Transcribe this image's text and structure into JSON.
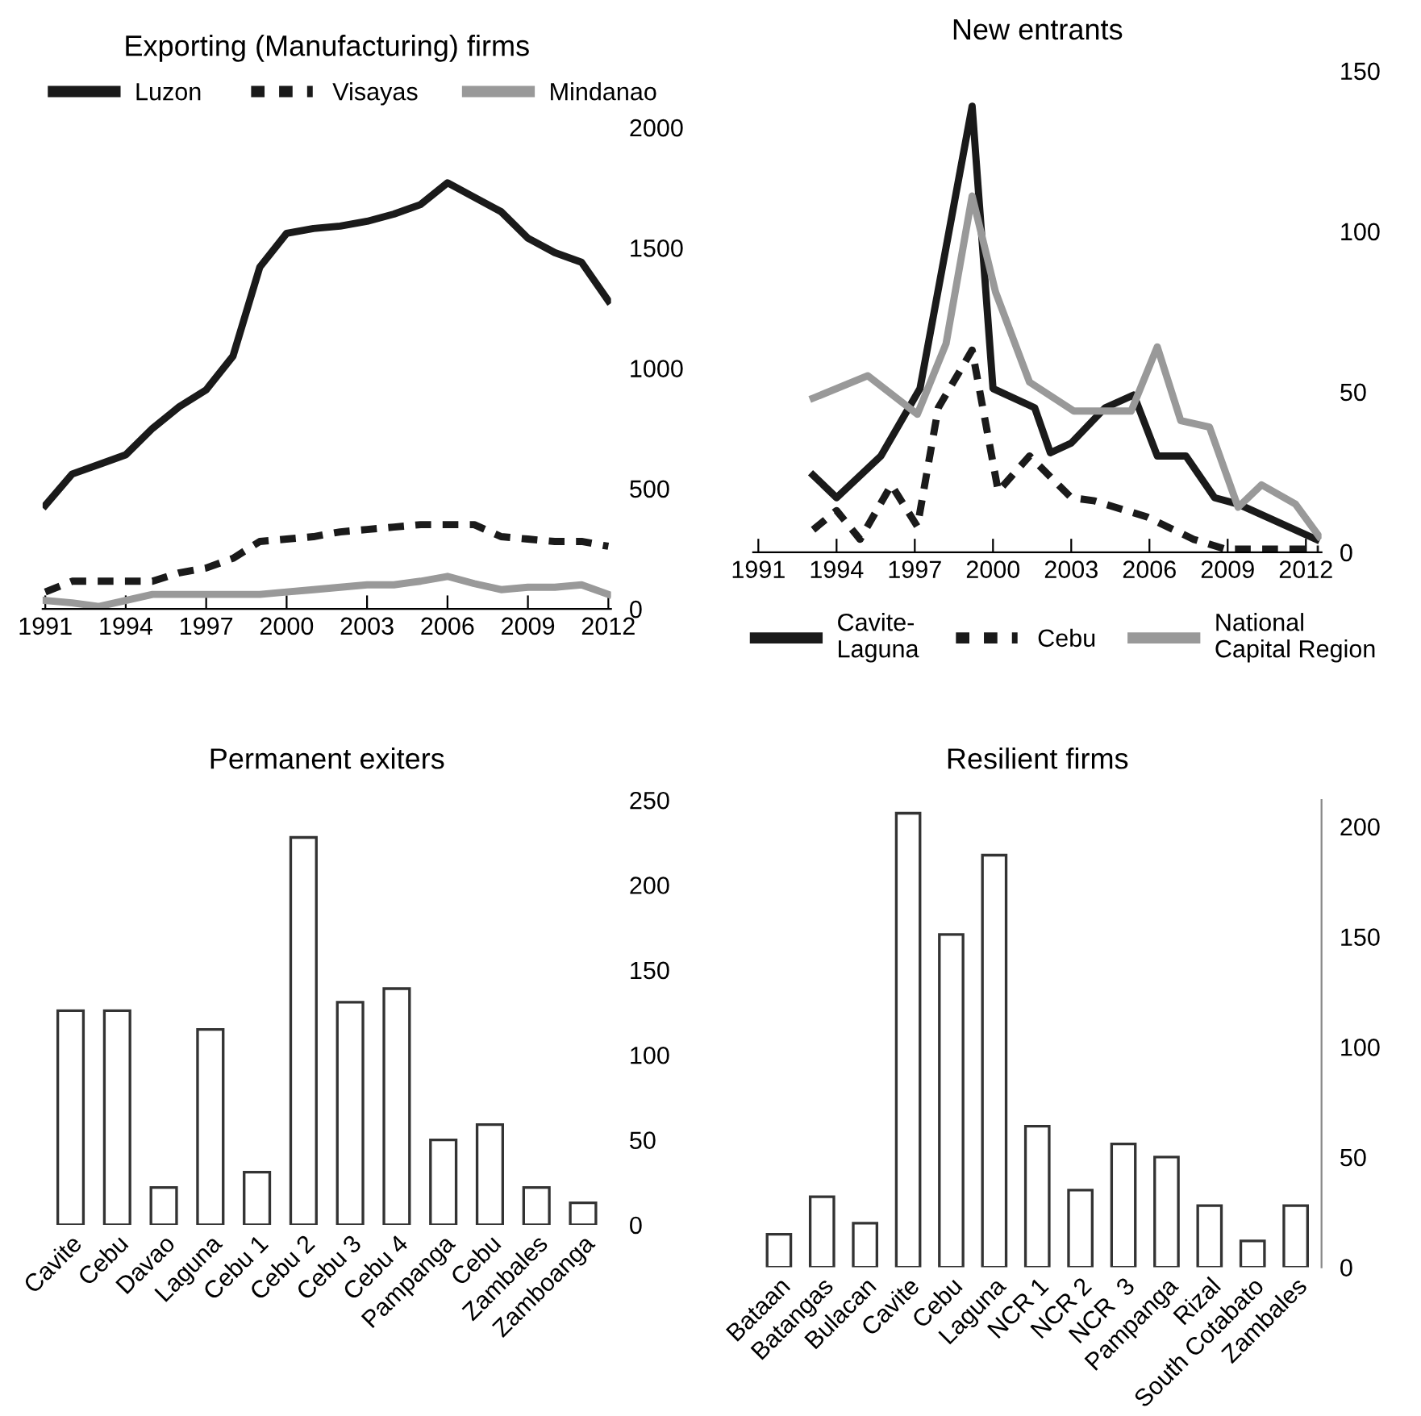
{
  "chart_data": [
    {
      "type": "line",
      "title": "Exporting (Manufacturing) firms",
      "legend": "top",
      "grid": false,
      "xlim": [
        1990.9,
        2012.1
      ],
      "xticks": [
        1991,
        1994,
        1997,
        2000,
        2003,
        2006,
        2009,
        2012
      ],
      "ylim": [
        0,
        2000
      ],
      "yticks": [
        0,
        500,
        1000,
        1500,
        2000
      ],
      "x": [
        1991,
        1992,
        1993,
        1994,
        1995,
        1996,
        1997,
        1998,
        1999,
        2000,
        2001,
        2002,
        2003,
        2004,
        2005,
        2006,
        2007,
        2008,
        2009,
        2010,
        2011,
        2012
      ],
      "series": [
        {
          "name": "Luzon",
          "color": "#1a1a1a",
          "line_style": "solid",
          "values": [
            430,
            560,
            600,
            640,
            750,
            840,
            910,
            1050,
            1420,
            1560,
            1580,
            1590,
            1610,
            1640,
            1680,
            1770,
            1710,
            1650,
            1540,
            1480,
            1440,
            1280
          ]
        },
        {
          "name": "Visayas",
          "color": "#1a1a1a",
          "line_style": "dashed",
          "values": [
            70,
            115,
            115,
            115,
            115,
            150,
            170,
            210,
            280,
            290,
            300,
            320,
            330,
            340,
            350,
            350,
            350,
            300,
            290,
            280,
            280,
            260
          ]
        },
        {
          "name": "Mindanao",
          "color": "#999999",
          "line_style": "solid",
          "values": [
            35,
            25,
            10,
            35,
            60,
            60,
            60,
            60,
            60,
            70,
            80,
            90,
            100,
            100,
            115,
            135,
            105,
            80,
            90,
            90,
            100,
            60
          ]
        }
      ]
    },
    {
      "type": "line",
      "title": "New entrants",
      "legend": "bottom",
      "grid": false,
      "xlim": [
        1990.8,
        2012.6
      ],
      "xticks": [
        1991,
        1994,
        1997,
        2000,
        2003,
        2006,
        2009,
        2012
      ],
      "ylim": [
        0,
        150
      ],
      "yticks": [
        0,
        50,
        100,
        150
      ],
      "series": [
        {
          "name": "Cavite-\nLaguna",
          "color": "#1a1a1a",
          "line_style": "solid",
          "x": [
            1993.1,
            1994,
            1995.7,
            1997.2,
            1999.2,
            2000,
            2001.6,
            2002.2,
            2003,
            2004.3,
            2005.4,
            2006.3,
            2007.4,
            2008.5,
            2009.4,
            2012.4
          ],
          "values": [
            24,
            17,
            30,
            51,
            139,
            51,
            45,
            31,
            34,
            45,
            49,
            30,
            30,
            17,
            15,
            4
          ]
        },
        {
          "name": "Cebu",
          "color": "#1a1a1a",
          "line_style": "dashed",
          "x": [
            1993.1,
            1994,
            1994.9,
            1996.1,
            1997.1,
            1997.9,
            1999.2,
            2000.2,
            2001.4,
            2003,
            2003.9,
            2005.9,
            2007.7,
            2008.9,
            2012.5
          ],
          "values": [
            7,
            13,
            4,
            21,
            8,
            45,
            63,
            19,
            30,
            17,
            16,
            11,
            4,
            1,
            1
          ]
        },
        {
          "name": "National\nCapital Region",
          "color": "#999999",
          "line_style": "solid",
          "x": [
            1993.1,
            1995.2,
            1997.1,
            1998.2,
            1999.2,
            2000.1,
            2001.4,
            2003.1,
            2005.3,
            2006.3,
            2007.2,
            2008.3,
            2009.4,
            2010.3,
            2011.6,
            2012.5
          ],
          "values": [
            48,
            55,
            43,
            65,
            111,
            81,
            53,
            44,
            44,
            64,
            41,
            39,
            14,
            21,
            15,
            5
          ]
        }
      ]
    },
    {
      "type": "bar",
      "title": "Permanent exiters",
      "legend": false,
      "grid": false,
      "ylim": [
        0,
        250
      ],
      "yticks": [
        0,
        50,
        100,
        150,
        200,
        250
      ],
      "color": "#ffffff",
      "categories": [
        "Cavite",
        "Cebu",
        "Davao",
        "Laguna",
        "Cebu 1",
        "Cebu 2",
        "Cebu 3",
        "Cebu 4",
        "Pampanga",
        "Cebu",
        "Zambales",
        "Zamboanga"
      ],
      "values": [
        126,
        126,
        22,
        115,
        31,
        228,
        131,
        139,
        50,
        59,
        22,
        13
      ]
    },
    {
      "type": "bar",
      "title": "Resilient firms",
      "legend": false,
      "grid": false,
      "ylim": [
        0,
        212
      ],
      "yticks": [
        0,
        50,
        100,
        150,
        200
      ],
      "color": "#ffffff",
      "categories": [
        "Bataan",
        "Batangas",
        "Bulacan",
        "Cavite",
        "Cebu",
        "Laguna",
        "NCR 1",
        "NCR 2",
        "NCR  3",
        "Pampanga",
        "Rizal",
        "South Cotabato",
        "Zambales"
      ],
      "values": [
        15,
        32,
        20,
        206,
        151,
        187,
        64,
        35,
        56,
        50,
        28,
        12,
        28
      ]
    }
  ]
}
